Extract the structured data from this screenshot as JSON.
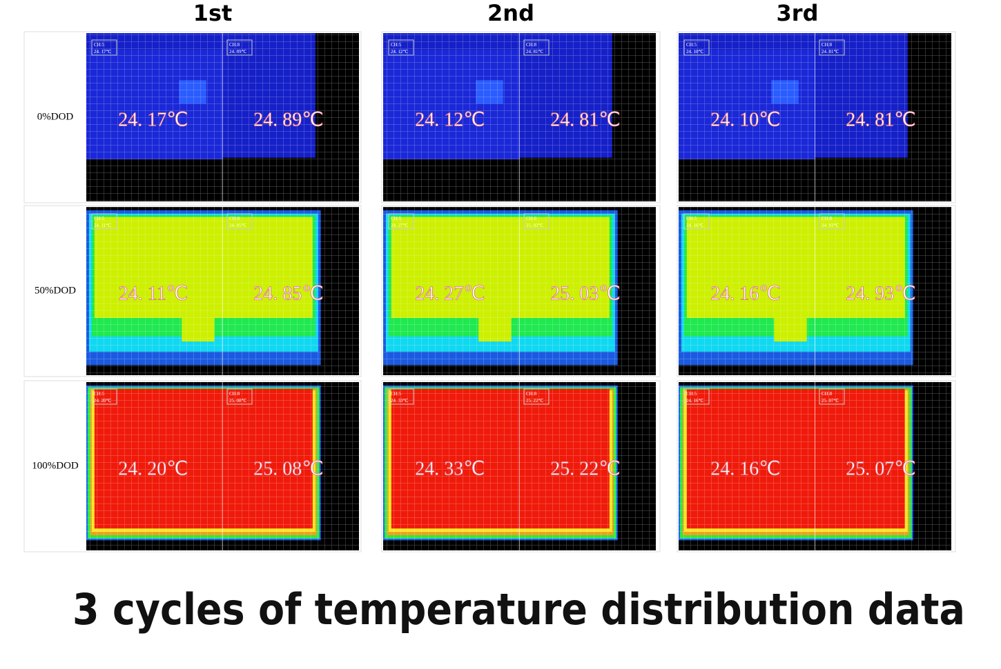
{
  "columns": [
    "1st",
    "2nd",
    "3rd"
  ],
  "channels": [
    "CH:5",
    "CH:8"
  ],
  "rows": [
    {
      "label": "0%DOD",
      "cells": [
        [
          "24. 17℃",
          "24. 89℃"
        ],
        [
          "24. 12℃",
          "24. 81℃"
        ],
        [
          "24. 10℃",
          "24. 81℃"
        ]
      ]
    },
    {
      "label": "50%DOD",
      "cells": [
        [
          "24. 11℃",
          "24. 85℃"
        ],
        [
          "24. 27℃",
          "25. 03℃"
        ],
        [
          "24. 16℃",
          "24. 93℃"
        ]
      ]
    },
    {
      "label": "100%DOD",
      "cells": [
        [
          "24. 20℃",
          "25. 08℃"
        ],
        [
          "24. 33℃",
          "25. 22℃"
        ],
        [
          "24. 16℃",
          "25. 07℃"
        ]
      ]
    }
  ],
  "caption": "3 cycles of temperature distribution data"
}
